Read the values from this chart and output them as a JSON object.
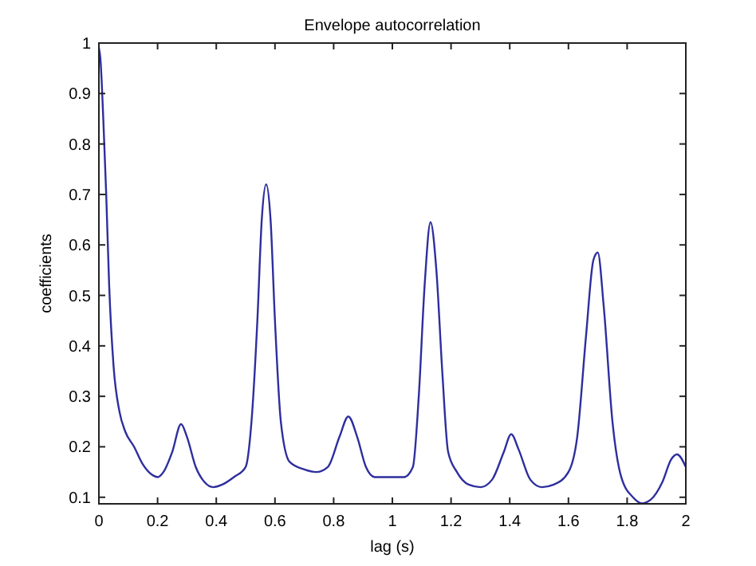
{
  "chart_data": {
    "type": "line",
    "title": "Envelope autocorrelation",
    "xlabel": "lag (s)",
    "ylabel": "coefficients",
    "xlim": [
      0,
      2
    ],
    "ylim": [
      0.087,
      1
    ],
    "xticks": [
      0,
      0.2,
      0.4,
      0.6,
      0.8,
      1,
      1.2,
      1.4,
      1.6,
      1.8,
      2
    ],
    "yticks": [
      0.1,
      0.2,
      0.3,
      0.4,
      0.5,
      0.6,
      0.7,
      0.8,
      0.9,
      1
    ],
    "grid": false,
    "marker": "none",
    "line_style": "solid",
    "series": [
      {
        "color": "#2e2e9e",
        "x": [
          0,
          0.005,
          0.015,
          0.025,
          0.035,
          0.05,
          0.07,
          0.09,
          0.12,
          0.15,
          0.18,
          0.2,
          0.22,
          0.25,
          0.28,
          0.3,
          0.33,
          0.36,
          0.39,
          0.42,
          0.46,
          0.5,
          0.52,
          0.54,
          0.555,
          0.57,
          0.585,
          0.6,
          0.62,
          0.65,
          0.7,
          0.74,
          0.78,
          0.82,
          0.85,
          0.88,
          0.91,
          0.94,
          0.98,
          1.04,
          1.07,
          1.09,
          1.11,
          1.13,
          1.15,
          1.17,
          1.19,
          1.22,
          1.26,
          1.3,
          1.34,
          1.38,
          1.405,
          1.43,
          1.47,
          1.51,
          1.55,
          1.6,
          1.63,
          1.66,
          1.685,
          1.7,
          1.72,
          1.75,
          1.78,
          1.82,
          1.85,
          1.88,
          1.92,
          1.95,
          1.97,
          2
        ],
        "values": [
          0.99,
          0.97,
          0.85,
          0.7,
          0.52,
          0.36,
          0.27,
          0.23,
          0.2,
          0.165,
          0.145,
          0.14,
          0.15,
          0.19,
          0.245,
          0.22,
          0.16,
          0.13,
          0.12,
          0.125,
          0.14,
          0.16,
          0.25,
          0.45,
          0.65,
          0.72,
          0.65,
          0.45,
          0.25,
          0.17,
          0.155,
          0.15,
          0.16,
          0.22,
          0.26,
          0.22,
          0.16,
          0.14,
          0.14,
          0.14,
          0.16,
          0.3,
          0.52,
          0.645,
          0.55,
          0.35,
          0.19,
          0.15,
          0.125,
          0.12,
          0.135,
          0.19,
          0.225,
          0.195,
          0.135,
          0.12,
          0.125,
          0.15,
          0.22,
          0.42,
          0.57,
          0.585,
          0.48,
          0.25,
          0.14,
          0.1,
          0.088,
          0.095,
          0.13,
          0.175,
          0.185,
          0.16
        ]
      }
    ]
  }
}
